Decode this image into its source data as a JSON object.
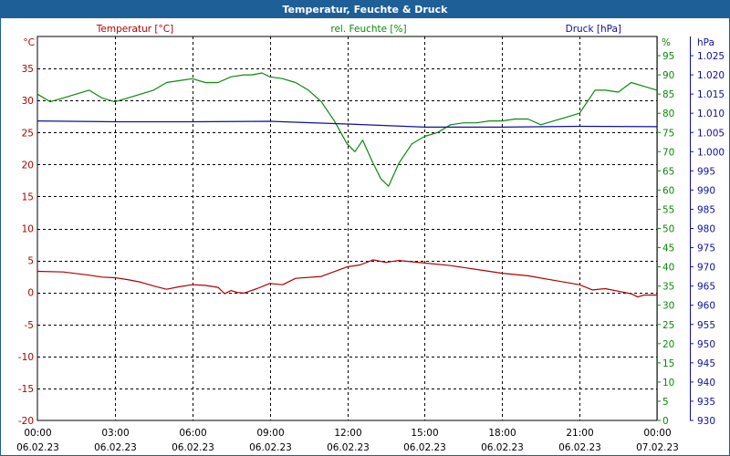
{
  "window": {
    "title": "Temperatur, Feuchte & Druck"
  },
  "colors": {
    "temperature": "#b00000",
    "humidity": "#0a8a0a",
    "pressure": "#1010a0",
    "title_bar": "#1f5f97",
    "grid": "#000000"
  },
  "chart_data": {
    "type": "line",
    "title": "Temperatur, Feuchte & Druck",
    "grid": true,
    "x_axis": {
      "range": [
        "06.02.23 00:00",
        "07.02.23 00:00"
      ],
      "ticks": [
        {
          "time": "00:00",
          "date": "06.02.23"
        },
        {
          "time": "03:00",
          "date": "06.02.23"
        },
        {
          "time": "06:00",
          "date": "06.02.23"
        },
        {
          "time": "09:00",
          "date": "06.02.23"
        },
        {
          "time": "12:00",
          "date": "06.02.23"
        },
        {
          "time": "15:00",
          "date": "06.02.23"
        },
        {
          "time": "18:00",
          "date": "06.02.23"
        },
        {
          "time": "21:00",
          "date": "06.02.23"
        },
        {
          "time": "00:00",
          "date": "07.02.23"
        }
      ]
    },
    "axes": {
      "temperature": {
        "label": "Temperatur [°C]",
        "unit": "°C",
        "range": [
          -20,
          40
        ],
        "ticks": [
          "-20",
          "-15",
          "-10",
          "-5",
          "0",
          "5",
          "10",
          "15",
          "20",
          "25",
          "30",
          "35"
        ]
      },
      "humidity": {
        "label": "rel. Feuchte [%]",
        "unit": "%",
        "range": [
          0,
          100
        ],
        "ticks": [
          "0",
          "5",
          "10",
          "15",
          "20",
          "25",
          "30",
          "35",
          "40",
          "45",
          "50",
          "55",
          "60",
          "65",
          "70",
          "75",
          "80",
          "85",
          "90",
          "95"
        ]
      },
      "pressure": {
        "label": "Druck [hPa]",
        "unit": "hPa",
        "range": [
          930,
          1030
        ],
        "ticks": [
          "930",
          "935",
          "940",
          "945",
          "950",
          "955",
          "960",
          "965",
          "970",
          "975",
          "980",
          "985",
          "990",
          "995",
          "1.000",
          "1.005",
          "1.010",
          "1.015",
          "1.020",
          "1.025"
        ]
      }
    },
    "series": [
      {
        "name": "Temperatur [°C]",
        "axis": "temperature",
        "color_key": "temperature",
        "x_hours": [
          0,
          1,
          2,
          2.5,
          3,
          3.5,
          4,
          4.5,
          5,
          5.5,
          6,
          6.5,
          7,
          7.25,
          7.5,
          7.75,
          8,
          8.5,
          9,
          9.5,
          10,
          11,
          12,
          12.5,
          13,
          13.5,
          14,
          15,
          16,
          17,
          18,
          19,
          20,
          21,
          21.5,
          22,
          22.5,
          23,
          23.25,
          23.5,
          24
        ],
        "values": [
          3.3,
          3.2,
          2.7,
          2.4,
          2.3,
          2.0,
          1.6,
          1.0,
          0.5,
          0.9,
          1.2,
          1.1,
          0.8,
          -0.2,
          0.3,
          0.0,
          -0.1,
          0.6,
          1.4,
          1.2,
          2.2,
          2.5,
          4.0,
          4.3,
          5.1,
          4.7,
          5.0,
          4.6,
          4.2,
          3.6,
          3.0,
          2.6,
          1.9,
          1.2,
          0.4,
          0.6,
          0.2,
          -0.2,
          -0.7,
          -0.4,
          -0.4
        ]
      },
      {
        "name": "rel. Feuchte [%]",
        "axis": "humidity",
        "color_key": "humidity",
        "x_hours": [
          0,
          0.5,
          1,
          1.5,
          2,
          2.5,
          3,
          3.5,
          4,
          4.5,
          5,
          5.5,
          6,
          6.5,
          7,
          7.5,
          8,
          8.3,
          8.7,
          9,
          9.5,
          10,
          10.5,
          11,
          11.5,
          12,
          12.3,
          12.6,
          13,
          13.3,
          13.6,
          14,
          14.5,
          15,
          15.5,
          16,
          16.5,
          17,
          17.5,
          18,
          18.5,
          19,
          19.5,
          20,
          20.5,
          21,
          21.3,
          21.6,
          22,
          22.5,
          23,
          23.5,
          24
        ],
        "values": [
          85,
          83,
          84,
          85,
          86,
          84,
          83,
          84,
          85,
          86,
          88,
          88.5,
          89,
          88,
          88,
          89.5,
          90,
          90,
          90.5,
          89.5,
          89,
          88,
          86,
          83,
          78,
          72,
          70,
          73,
          67,
          63,
          61,
          67,
          72,
          74,
          75,
          77,
          77.5,
          77.5,
          78,
          78,
          78.5,
          78.5,
          77,
          78,
          79,
          80,
          83,
          86,
          86,
          85.5,
          88,
          87,
          86
        ]
      },
      {
        "name": "Druck [hPa]",
        "axis": "pressure",
        "color_key": "pressure",
        "x_hours": [
          0,
          3,
          6,
          9,
          12,
          15,
          18,
          21,
          24
        ],
        "values": [
          1008.0,
          1007.8,
          1007.8,
          1007.9,
          1007.2,
          1006.4,
          1006.4,
          1006.6,
          1006.5
        ]
      }
    ]
  }
}
